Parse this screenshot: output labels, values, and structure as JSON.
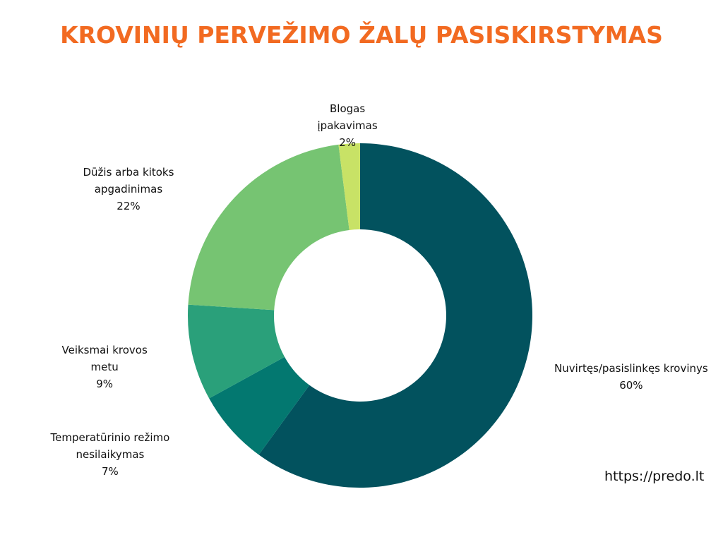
{
  "title": "KROVINIŲ PERVEŽIMO ŽALŲ PASISKIRSTYMAS",
  "footer_url": "https://predo.lt",
  "chart_data": {
    "type": "pie",
    "donut": true,
    "title": "KROVINIŲ PERVEŽIMO ŽALŲ PASISKIRSTYMAS",
    "legend": "none",
    "slices": [
      {
        "label_lines": [
          "Nuvirtęs/pasislinkęs krovinys"
        ],
        "value": 60,
        "value_label": "60%",
        "color": "#02525e"
      },
      {
        "label_lines": [
          "Temperatūrinio režimo",
          "nesilaikymas"
        ],
        "value": 7,
        "value_label": "7%",
        "color": "#037870"
      },
      {
        "label_lines": [
          "Veiksmai krovos",
          "metu"
        ],
        "value": 9,
        "value_label": "9%",
        "color": "#2aa07a"
      },
      {
        "label_lines": [
          "Dūžis arba kitoks",
          "apgadinimas"
        ],
        "value": 22,
        "value_label": "22%",
        "color": "#76c472"
      },
      {
        "label_lines": [
          "Blogas",
          "įpakavimas"
        ],
        "value": 2,
        "value_label": "2%",
        "color": "#c8e266"
      }
    ]
  }
}
